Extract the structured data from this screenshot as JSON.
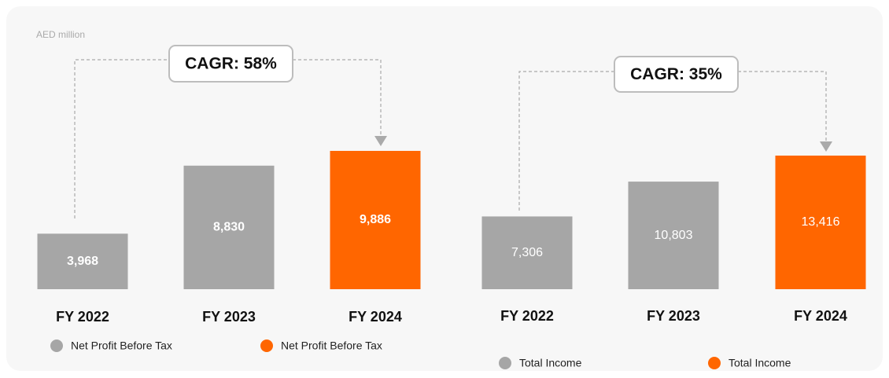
{
  "chart_data": [
    {
      "type": "bar",
      "unit": "AED million",
      "annotation": "CAGR: 58%",
      "categories": [
        "FY 2022",
        "FY 2023",
        "FY 2024"
      ],
      "values": [
        3968,
        8830,
        9886
      ],
      "value_labels": [
        "3,968",
        "8,830",
        "9,886"
      ],
      "colors": [
        "#a6a6a6",
        "#a6a6a6",
        "#ff6600"
      ],
      "legend": [
        {
          "name": "Net Profit Before Tax",
          "color": "#a6a6a6"
        },
        {
          "name": "Net Profit Before Tax",
          "color": "#ff6600"
        }
      ]
    },
    {
      "type": "bar",
      "annotation": "CAGR: 35%",
      "categories": [
        "FY 2022",
        "FY 2023",
        "FY 2024"
      ],
      "values": [
        7306,
        10803,
        13416
      ],
      "value_labels": [
        "7,306",
        "10,803",
        "13,416"
      ],
      "colors": [
        "#a6a6a6",
        "#a6a6a6",
        "#ff6600"
      ],
      "legend": [
        {
          "name": "Total Income",
          "color": "#a6a6a6"
        },
        {
          "name": "Total Income",
          "color": "#ff6600"
        }
      ]
    }
  ]
}
